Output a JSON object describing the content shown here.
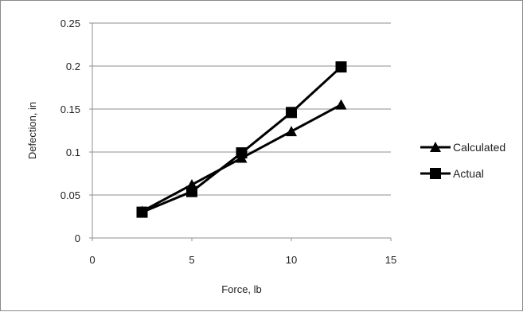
{
  "chart_data": {
    "type": "line",
    "title": "",
    "xlabel": "Force, lb",
    "ylabel": "Defection, in",
    "xlim": [
      0,
      15
    ],
    "ylim": [
      0,
      0.25
    ],
    "xticks": [
      0,
      5,
      10,
      15
    ],
    "xtick_labels": [
      "0",
      "5",
      "10",
      "15"
    ],
    "yticks": [
      0,
      0.05,
      0.1,
      0.15,
      0.2,
      0.25
    ],
    "ytick_labels": [
      "0",
      "0.05",
      "0.1",
      "0.15",
      "0.2",
      "0.25"
    ],
    "grid": "horizontal",
    "legend_position": "right",
    "x": [
      2.5,
      5,
      7.5,
      10,
      12.5
    ],
    "series": [
      {
        "name": "Calculated",
        "marker": "triangle",
        "color": "#000000",
        "values": [
          0.031,
          0.062,
          0.093,
          0.124,
          0.155
        ]
      },
      {
        "name": "Actual",
        "marker": "square",
        "color": "#000000",
        "values": [
          0.03,
          0.054,
          0.099,
          0.146,
          0.199
        ]
      }
    ]
  }
}
